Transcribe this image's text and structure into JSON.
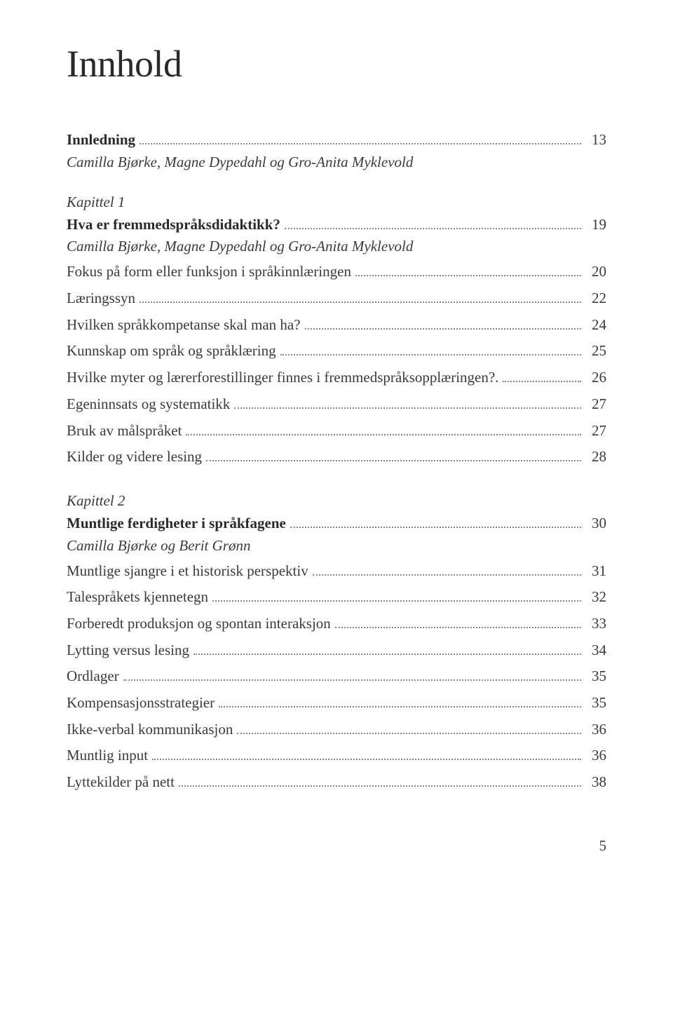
{
  "colors": {
    "background": "#ffffff",
    "text_primary": "#3a3a3a",
    "text_heading": "#2a2a2a",
    "leader_dots": "#888888"
  },
  "typography": {
    "title_fontsize_pt": 40,
    "body_fontsize_pt": 16,
    "font_family": "serif"
  },
  "title": "Innhold",
  "intro": {
    "heading_label": "Innledning",
    "heading_page": "13",
    "authors": "Camilla Bjørke, Magne Dypedahl og Gro-Anita Myklevold"
  },
  "chapter1": {
    "chapter_label": "Kapittel 1",
    "heading_label": "Hva er fremmedspråksdidaktikk?",
    "heading_page": "19",
    "authors": "Camilla Bjørke, Magne Dypedahl og Gro-Anita Myklevold",
    "entries": [
      {
        "label": "Fokus på form eller funksjon i språkinnlæringen",
        "page": "20"
      },
      {
        "label": "Læringssyn",
        "page": "22"
      },
      {
        "label": "Hvilken språkkompetanse skal man ha?",
        "page": "24"
      },
      {
        "label": "Kunnskap om språk og språklæring",
        "page": "25"
      },
      {
        "label": "Hvilke myter og lærerforestillinger finnes i fremmedspråksopplæringen?.",
        "page": "26"
      },
      {
        "label": "Egeninnsats og systematikk",
        "page": "27"
      },
      {
        "label": "Bruk av målspråket",
        "page": "27"
      },
      {
        "label": "Kilder og videre lesing",
        "page": "28"
      }
    ]
  },
  "chapter2": {
    "chapter_label": "Kapittel 2",
    "heading_label": "Muntlige ferdigheter i språkfagene",
    "heading_page": "30",
    "authors": "Camilla Bjørke og Berit Grønn",
    "entries": [
      {
        "label": "Muntlige sjangre i et historisk perspektiv",
        "page": "31"
      },
      {
        "label": "Talespråkets kjennetegn",
        "page": "32"
      },
      {
        "label": "Forberedt produksjon og spontan interaksjon",
        "page": "33"
      },
      {
        "label": "Lytting versus lesing",
        "page": "34"
      },
      {
        "label": "Ordlager",
        "page": "35"
      },
      {
        "label": "Kompensasjonsstrategier",
        "page": "35"
      },
      {
        "label": "Ikke-verbal kommunikasjon",
        "page": "36"
      },
      {
        "label": "Muntlig input",
        "page": "36"
      },
      {
        "label": "Lyttekilder på nett",
        "page": "38"
      }
    ]
  },
  "footer_page": "5"
}
